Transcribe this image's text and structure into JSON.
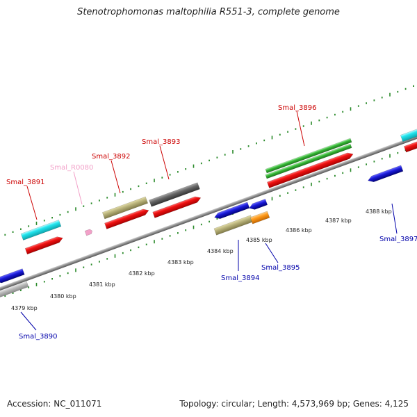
{
  "header": {
    "title": "Stenotrophomonas maltophilia R551-3, complete genome"
  },
  "footer": {
    "accession": "Accession: NC_011071",
    "summary": "Topology: circular; Length: 4,573,969 bp; Genes: 4,125"
  },
  "colors": {
    "backbone": "#8c8c8c",
    "tick": "#2a8a2a",
    "label_plus": "#cc0000",
    "label_minus": "#0000aa",
    "label_rna": "#f2a0c8",
    "cds_red": "#ee1111",
    "cds_cyan": "#22e5ee",
    "cds_olive": "#b8b27a",
    "cds_grey": "#666666",
    "cds_green": "#38b838",
    "cds_blue": "#1a1ad8",
    "cds_lightgrey": "#bdbdbd",
    "cds_orange": "#ff9a1a",
    "rna_pink": "#f2a0c8"
  },
  "scale_labels": [
    "4379 kbp",
    "4380 kbp",
    "4381 kbp",
    "4382 kbp",
    "4383 kbp",
    "4384 kbp",
    "4385 kbp",
    "4386 kbp",
    "4387 kbp",
    "4388 kbp"
  ],
  "genes": {
    "smal_3890": "Smal_3890",
    "smal_3891": "Smal_3891",
    "smal_r0080": "Smal_R0080",
    "smal_3892": "Smal_3892",
    "smal_3893": "Smal_3893",
    "smal_3894": "Smal_3894",
    "smal_3895": "Smal_3895",
    "smal_3896": "Smal_3896",
    "smal_3897": "Smal_3897"
  }
}
